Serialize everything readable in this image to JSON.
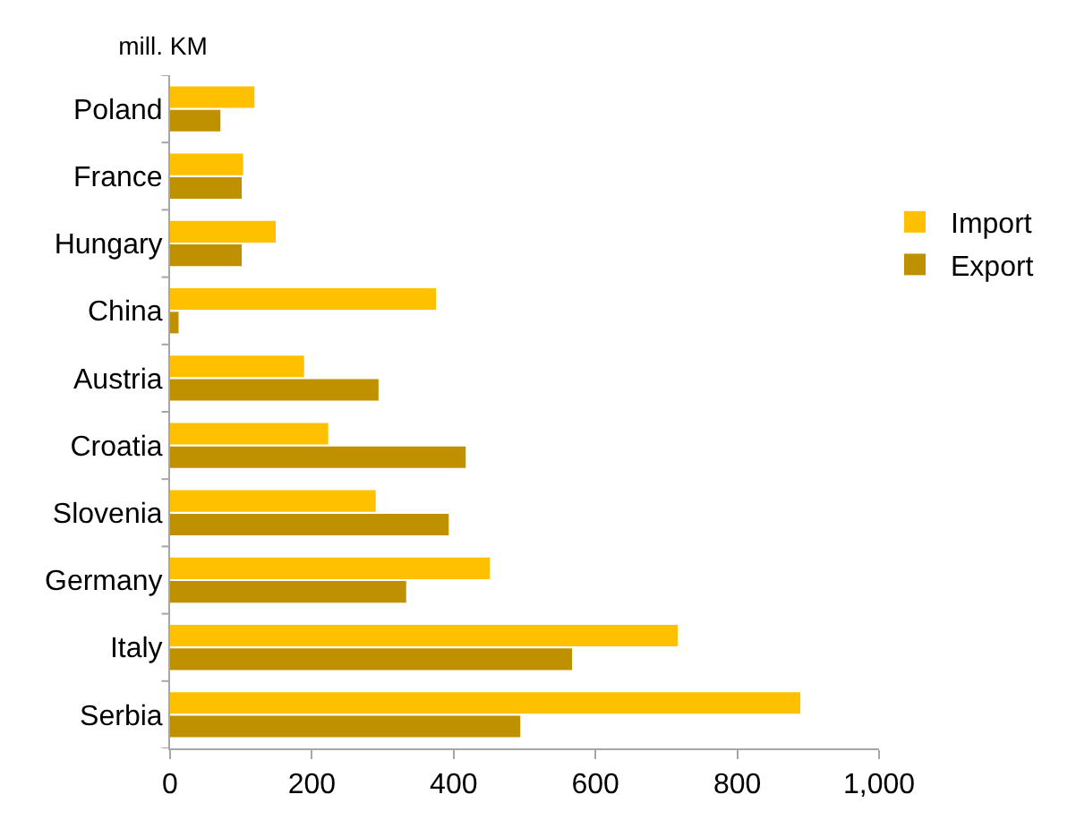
{
  "chart_data": {
    "type": "bar",
    "orientation": "horizontal",
    "title": "mill. KM",
    "categories": [
      "Poland",
      "France",
      "Hungary",
      "China",
      "Austria",
      "Croatia",
      "Slovenia",
      "Germany",
      "Italy",
      "Serbia"
    ],
    "series": [
      {
        "name": "Import",
        "color": "#ffc000",
        "values": [
          119,
          103,
          149,
          375,
          189,
          223,
          290,
          451,
          716,
          889
        ]
      },
      {
        "name": "Export",
        "color": "#bf9000",
        "values": [
          71,
          101,
          101,
          12,
          294,
          417,
          393,
          333,
          567,
          494
        ]
      }
    ],
    "xlim": [
      0,
      1000
    ],
    "xticks": [
      0,
      200,
      400,
      600,
      800,
      {
        "value": 1000,
        "label": "1,000"
      }
    ],
    "grid": false,
    "legend": "right"
  }
}
